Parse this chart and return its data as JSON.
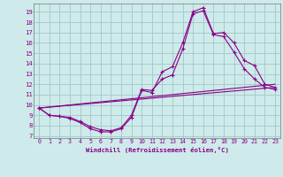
{
  "xlabel": "Windchill (Refroidissement éolien,°C)",
  "background_color": "#ceeaea",
  "line_color": "#880088",
  "grid_color": "#a0c8c8",
  "xlim": [
    -0.5,
    23.5
  ],
  "ylim": [
    6.8,
    19.8
  ],
  "yticks": [
    7,
    8,
    9,
    10,
    11,
    12,
    13,
    14,
    15,
    16,
    17,
    18,
    19
  ],
  "xticks": [
    0,
    1,
    2,
    3,
    4,
    5,
    6,
    7,
    8,
    9,
    10,
    11,
    12,
    13,
    14,
    15,
    16,
    17,
    18,
    19,
    20,
    21,
    22,
    23
  ],
  "series1_x": [
    0,
    1,
    2,
    3,
    4,
    5,
    6,
    7,
    8,
    9,
    10,
    11,
    12,
    13,
    14,
    15,
    16,
    17,
    18,
    19,
    20,
    21,
    22,
    23
  ],
  "series1_y": [
    9.7,
    9.0,
    8.9,
    8.7,
    8.3,
    7.7,
    7.4,
    7.4,
    7.7,
    8.8,
    11.4,
    11.2,
    13.2,
    13.7,
    16.0,
    19.0,
    19.4,
    16.9,
    17.0,
    16.0,
    14.3,
    13.8,
    12.0,
    11.7
  ],
  "series2_x": [
    0,
    1,
    2,
    3,
    4,
    5,
    6,
    7,
    8,
    9,
    10,
    11,
    12,
    13,
    14,
    15,
    16,
    17,
    18,
    19,
    20,
    21,
    22,
    23
  ],
  "series2_y": [
    9.7,
    9.0,
    8.9,
    8.8,
    8.4,
    7.9,
    7.6,
    7.5,
    7.8,
    9.0,
    11.5,
    11.4,
    12.5,
    12.9,
    15.4,
    18.8,
    19.1,
    16.8,
    16.6,
    15.1,
    13.5,
    12.5,
    11.7,
    11.5
  ],
  "series3_x": [
    0,
    23
  ],
  "series3_y": [
    9.7,
    12.0
  ],
  "series4_x": [
    0,
    23
  ],
  "series4_y": [
    9.7,
    11.7
  ]
}
